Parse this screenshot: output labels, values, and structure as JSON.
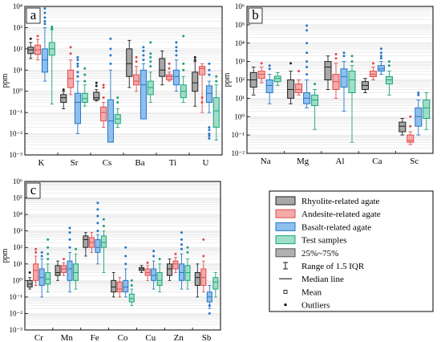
{
  "legend": {
    "items": [
      {
        "label": "Rhyolite-related agate",
        "fill": "#a8a8a8",
        "stroke": "#222222",
        "kind": "box"
      },
      {
        "label": "Andesite-related agate",
        "fill": "#f5aaaa",
        "stroke": "#e14b4b",
        "kind": "box"
      },
      {
        "label": "Basalt-related agate",
        "fill": "#8fbfec",
        "stroke": "#2376c9",
        "kind": "box"
      },
      {
        "label": "Test samples",
        "fill": "#9fdec8",
        "stroke": "#1aa37a",
        "kind": "box"
      },
      {
        "label": "25%~75%",
        "fill": "#b0b0b0",
        "stroke": "#555555",
        "kind": "box"
      },
      {
        "label": "Range of 1.5 IQR",
        "kind": "whisker"
      },
      {
        "label": "Median line",
        "kind": "line"
      },
      {
        "label": "Mean",
        "kind": "square"
      },
      {
        "label": "Outliers",
        "kind": "dot"
      }
    ]
  },
  "chart_data": [
    {
      "type": "box",
      "panel_label": "a",
      "ylabel": "ppm",
      "yscale": "log",
      "ylim": [
        -3,
        4
      ],
      "ytick_labels": [
        "10⁻³",
        "10⁻²",
        "10⁻¹",
        "10⁰",
        "10¹",
        "10²",
        "10³",
        "10⁴"
      ],
      "categories": [
        "K",
        "Sr",
        "Cs",
        "Ba",
        "Ti",
        "U"
      ],
      "groups": [
        [
          {
            "q1": 60,
            "med": 90,
            "q3": 120,
            "lo": 35,
            "hi": 200,
            "out": [
              300
            ]
          },
          {
            "q1": 55,
            "med": 90,
            "q3": 150,
            "lo": 30,
            "hi": 280,
            "out": [
              400
            ]
          },
          {
            "q1": 8,
            "med": 30,
            "q3": 100,
            "lo": 3,
            "hi": 1000,
            "out": [
              2000,
              3000,
              5000,
              8000,
              1500
            ]
          },
          {
            "q1": 50,
            "med": 100,
            "q3": 200,
            "lo": 0.25,
            "hi": 800,
            "out": [
              900,
              1100
            ]
          }
        ],
        [
          {
            "q1": 0.3,
            "med": 0.5,
            "q3": 0.7,
            "lo": 0.15,
            "hi": 1.0,
            "out": [
              1.2
            ]
          },
          {
            "q1": 1.5,
            "med": 4,
            "q3": 10,
            "lo": 0.7,
            "hi": 30,
            "out": [
              60,
              120
            ]
          },
          {
            "q1": 0.03,
            "med": 0.3,
            "q3": 0.8,
            "lo": 0.01,
            "hi": 3,
            "out": [
              5,
              8,
              15,
              20,
              30,
              40
            ]
          },
          {
            "q1": 0.3,
            "med": 0.45,
            "q3": 0.8,
            "lo": 0.2,
            "hi": 2,
            "out": [
              3,
              6,
              12
            ]
          }
        ],
        [
          {
            "q1": 0.4,
            "med": 0.5,
            "q3": 0.9,
            "lo": 0.35,
            "hi": 1.2,
            "out": [
              1.8,
              2.5
            ]
          },
          {
            "q1": 0.04,
            "med": 0.1,
            "q3": 0.18,
            "lo": 0.02,
            "hi": 0.3,
            "out": [
              0.5,
              1.5,
              2
            ]
          },
          {
            "q1": 0.004,
            "med": 0.04,
            "q3": 0.4,
            "lo": 0.004,
            "hi": 10,
            "out": [
              20,
              50,
              100,
              300
            ]
          },
          {
            "q1": 0.03,
            "med": 0.05,
            "q3": 0.08,
            "lo": 0.02,
            "hi": 0.15,
            "out": [
              0.3,
              0.5
            ]
          }
        ],
        [
          {
            "q1": 5,
            "med": 20,
            "q3": 100,
            "lo": 1.5,
            "hi": 250,
            "out": []
          },
          {
            "q1": 2,
            "med": 3,
            "q3": 6,
            "lo": 1,
            "hi": 15,
            "out": [
              25,
              40
            ]
          },
          {
            "q1": 0.05,
            "med": 2,
            "q3": 10,
            "lo": 0.05,
            "hi": 20,
            "out": [
              30,
              50,
              80,
              120
            ]
          },
          {
            "q1": 0.7,
            "med": 1.5,
            "q3": 3,
            "lo": 0.3,
            "hi": 8,
            "out": [
              15,
              25,
              40,
              60,
              200
            ]
          }
        ],
        [
          {
            "q1": 5,
            "med": 10,
            "q3": 35,
            "lo": 2,
            "hi": 80,
            "out": []
          },
          {
            "q1": 3.5,
            "med": 5,
            "q3": 6,
            "lo": 3,
            "hi": 8,
            "out": [
              12,
              20
            ]
          },
          {
            "q1": 2,
            "med": 5,
            "q3": 10,
            "lo": 1,
            "hi": 30,
            "out": [
              50,
              80,
              120,
              200
            ]
          },
          {
            "q1": 0.5,
            "med": 1,
            "q3": 2,
            "lo": 0.3,
            "hi": 5,
            "out": [
              10,
              20,
              400
            ]
          }
        ],
        [
          {
            "q1": 1,
            "med": 2.5,
            "q3": 8,
            "lo": 0.2,
            "hi": 25,
            "out": [
              30,
              40
            ]
          },
          {
            "q1": 6,
            "med": 12,
            "q3": 15,
            "lo": 0.1,
            "hi": 20,
            "out": [
              0.3,
              0.5
            ]
          },
          {
            "q1": 0.3,
            "med": 0.8,
            "q3": 1.8,
            "lo": 0.1,
            "hi": 3,
            "out": [
              0.01,
              0.006,
              0.008,
              0.015,
              0.02,
              6,
              10,
              20
            ]
          },
          {
            "q1": 0.02,
            "med": 0.12,
            "q3": 0.5,
            "lo": 0.005,
            "hi": 2,
            "out": [
              3,
              5
            ]
          }
        ]
      ]
    },
    {
      "type": "box",
      "panel_label": "b",
      "ylabel": "ppm",
      "yscale": "log",
      "ylim": [
        -2,
        6
      ],
      "ytick_labels": [
        "10⁻²",
        "10⁻¹",
        "10⁰",
        "10¹",
        "10²",
        "10³",
        "10⁴",
        "10⁵",
        "10⁶"
      ],
      "categories": [
        "Na",
        "Mg",
        "Al",
        "Ca",
        "Sc"
      ],
      "groups": [
        [
          {
            "q1": 40,
            "med": 100,
            "q3": 250,
            "lo": 15,
            "hi": 500,
            "out": []
          },
          {
            "q1": 120,
            "med": 200,
            "q3": 300,
            "lo": 70,
            "hi": 500,
            "out": [
              800
            ]
          },
          {
            "q1": 20,
            "med": 50,
            "q3": 100,
            "lo": 5,
            "hi": 200,
            "out": [
              400,
              600
            ]
          },
          {
            "q1": 80,
            "med": 120,
            "q3": 160,
            "lo": 50,
            "hi": 250,
            "out": []
          }
        ],
        [
          {
            "q1": 10,
            "med": 30,
            "q3": 100,
            "lo": 5,
            "hi": 300,
            "out": [
              800
            ]
          },
          {
            "q1": 20,
            "med": 30,
            "q3": 60,
            "lo": 15,
            "hi": 100,
            "out": [
              300
            ]
          },
          {
            "q1": 5,
            "med": 10,
            "q3": 20,
            "lo": 3,
            "hi": 100,
            "out": [
              200,
              500,
              1000,
              3000,
              10000,
              50000,
              90000
            ]
          },
          {
            "q1": 4,
            "med": 8,
            "q3": 15,
            "lo": 0.2,
            "hi": 30,
            "out": [
              60
            ]
          }
        ],
        [
          {
            "q1": 100,
            "med": 500,
            "q3": 1000,
            "lo": 30,
            "hi": 2000,
            "out": []
          },
          {
            "q1": 30,
            "med": 80,
            "q3": 200,
            "lo": 10,
            "hi": 800,
            "out": [
              1500,
              2500
            ]
          },
          {
            "q1": 40,
            "med": 150,
            "q3": 400,
            "lo": 2,
            "hi": 1000,
            "out": [
              2000,
              3000
            ]
          },
          {
            "q1": 20,
            "med": 100,
            "q3": 300,
            "lo": 0.04,
            "hi": 600,
            "out": [
              1000,
              2000
            ]
          }
        ],
        [
          {
            "q1": 30,
            "med": 50,
            "q3": 80,
            "lo": 20,
            "hi": 120,
            "out": []
          },
          {
            "q1": 150,
            "med": 200,
            "q3": 300,
            "lo": 100,
            "hi": 500,
            "out": [
              800
            ]
          },
          {
            "q1": 300,
            "med": 400,
            "q3": 600,
            "lo": 200,
            "hi": 1000,
            "out": [
              1500,
              2000,
              3000,
              5000
            ]
          },
          {
            "q1": 60,
            "med": 100,
            "q3": 150,
            "lo": 15,
            "hi": 300,
            "out": [
              600,
              1000
            ]
          }
        ],
        [
          {
            "q1": 0.15,
            "med": 0.3,
            "q3": 0.5,
            "lo": 0.1,
            "hi": 0.8,
            "out": []
          },
          {
            "q1": 0.04,
            "med": 0.05,
            "q3": 0.1,
            "lo": 0.03,
            "hi": 0.15,
            "out": [
              0.3,
              1
            ]
          },
          {
            "q1": 0.3,
            "med": 1,
            "q3": 3,
            "lo": 0.1,
            "hi": 8,
            "out": [
              15,
              20
            ]
          },
          {
            "q1": 0.8,
            "med": 3,
            "q3": 8,
            "lo": 0.2,
            "hi": 20,
            "out": []
          }
        ]
      ]
    },
    {
      "type": "box",
      "panel_label": "c",
      "ylabel": "ppm",
      "yscale": "log",
      "ylim": [
        -3,
        6
      ],
      "ytick_labels": [
        "10⁻³",
        "10⁻²",
        "10⁻¹",
        "10⁰",
        "10¹",
        "10²",
        "10³",
        "10⁴",
        "10⁵",
        "10⁶"
      ],
      "categories": [
        "Cr",
        "Mn",
        "Fe",
        "Co",
        "Cu",
        "Zn",
        "Sb"
      ],
      "groups": [
        [
          {
            "q1": 0.4,
            "med": 0.6,
            "q3": 1,
            "lo": 0.3,
            "hi": 1.5,
            "out": [
              3
            ]
          },
          {
            "q1": 1,
            "med": 4,
            "q3": 10,
            "lo": 0.5,
            "hi": 30,
            "out": [
              50,
              80
            ]
          },
          {
            "q1": 0.5,
            "med": 1.5,
            "q3": 5,
            "lo": 0.1,
            "hi": 20,
            "out": [
              30,
              50
            ]
          },
          {
            "q1": 0.6,
            "med": 1.2,
            "q3": 3,
            "lo": 0.2,
            "hi": 10,
            "out": [
              20,
              40,
              100,
              300
            ]
          }
        ],
        [
          {
            "q1": 2,
            "med": 3,
            "q3": 8,
            "lo": 1,
            "hi": 15,
            "out": []
          },
          {
            "q1": 3,
            "med": 5,
            "q3": 8,
            "lo": 2,
            "hi": 12,
            "out": [
              20
            ]
          },
          {
            "q1": 1,
            "med": 5,
            "q3": 15,
            "lo": 0.2,
            "hi": 50,
            "out": [
              100,
              300,
              800,
              1500
            ]
          },
          {
            "q1": 1,
            "med": 3,
            "q3": 10,
            "lo": 0.3,
            "hi": 40,
            "out": [
              80
            ]
          }
        ],
        [
          {
            "q1": 100,
            "med": 300,
            "q3": 500,
            "lo": 30,
            "hi": 800,
            "out": []
          },
          {
            "q1": 100,
            "med": 200,
            "q3": 400,
            "lo": 50,
            "hi": 800,
            "out": []
          },
          {
            "q1": 50,
            "med": 100,
            "q3": 300,
            "lo": 10,
            "hi": 600,
            "out": [
              1000,
              3000,
              8000,
              20000,
              50000
            ]
          },
          {
            "q1": 100,
            "med": 200,
            "q3": 500,
            "lo": 3,
            "hi": 1000,
            "out": [
              2000,
              5000
            ]
          }
        ],
        [
          {
            "q1": 0.2,
            "med": 0.4,
            "q3": 1,
            "lo": 0.1,
            "hi": 3,
            "out": []
          },
          {
            "q1": 0.2,
            "med": 0.3,
            "q3": 0.8,
            "lo": 0.1,
            "hi": 1.5,
            "out": []
          },
          {
            "q1": 0.2,
            "med": 0.4,
            "q3": 1,
            "lo": 0.1,
            "hi": 5,
            "out": [
              10,
              30,
              100
            ]
          },
          {
            "q1": 0.05,
            "med": 0.08,
            "q3": 0.15,
            "lo": 0.03,
            "hi": 0.3,
            "out": [
              0.5,
              1
            ]
          }
        ],
        [
          {
            "q1": 4,
            "med": 5,
            "q3": 6,
            "lo": 3,
            "hi": 8,
            "out": []
          },
          {
            "q1": 2,
            "med": 3,
            "q3": 5,
            "lo": 1,
            "hi": 8,
            "out": [
              12
            ]
          },
          {
            "q1": 1,
            "med": 2,
            "q3": 5,
            "lo": 0.3,
            "hi": 15,
            "out": [
              30,
              60
            ]
          },
          {
            "q1": 0.5,
            "med": 1,
            "q3": 3,
            "lo": 0.2,
            "hi": 10,
            "out": [
              20
            ]
          }
        ],
        [
          {
            "q1": 2,
            "med": 5,
            "q3": 10,
            "lo": 1,
            "hi": 20,
            "out": []
          },
          {
            "q1": 5,
            "med": 10,
            "q3": 15,
            "lo": 3,
            "hi": 25,
            "out": [
              40
            ]
          },
          {
            "q1": 1,
            "med": 3,
            "q3": 10,
            "lo": 0.3,
            "hi": 40,
            "out": [
              80,
              150,
              300,
              800
            ]
          },
          {
            "q1": 1,
            "med": 3,
            "q3": 8,
            "lo": 0.3,
            "hi": 20,
            "out": [
              50,
              100
            ]
          }
        ],
        [
          {
            "q1": 0.5,
            "med": 1.5,
            "q3": 3,
            "lo": 0.1,
            "hi": 10,
            "out": []
          },
          {
            "q1": 0.5,
            "med": 1.5,
            "q3": 5,
            "lo": 0.2,
            "hi": 15,
            "out": [
              30,
              300
            ]
          },
          {
            "q1": 0.05,
            "med": 0.1,
            "q3": 0.2,
            "lo": 0.02,
            "hi": 0.5,
            "out": [
              0.01,
              0.03
            ]
          },
          {
            "q1": 0.3,
            "med": 0.8,
            "q3": 1.5,
            "lo": 0.1,
            "hi": 3,
            "out": []
          }
        ]
      ]
    }
  ]
}
